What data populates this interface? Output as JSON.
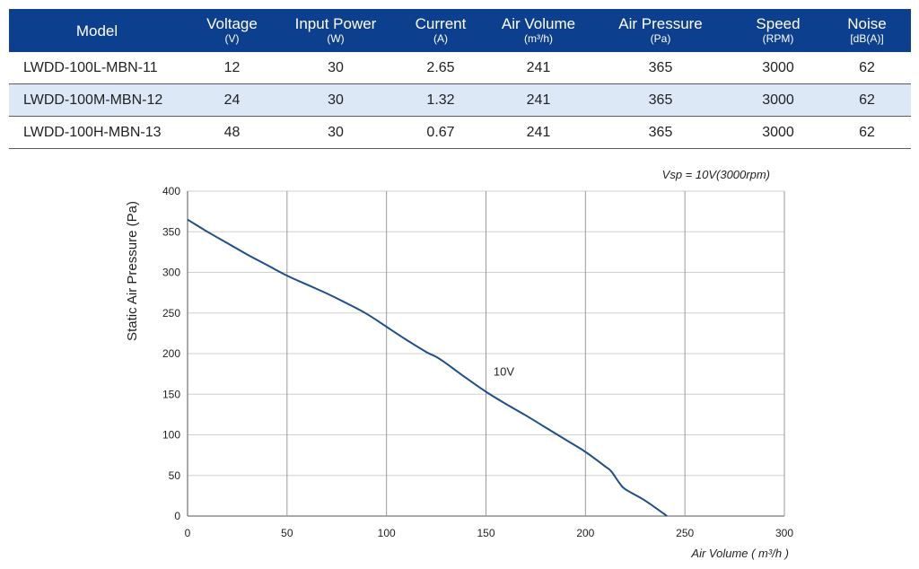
{
  "table": {
    "headers": [
      {
        "name": "Model",
        "unit": ""
      },
      {
        "name": "Voltage",
        "unit": "(V)"
      },
      {
        "name": "Input Power",
        "unit": "(W)"
      },
      {
        "name": "Current",
        "unit": "(A)"
      },
      {
        "name": "Air Volume",
        "unit": "(m³/h)"
      },
      {
        "name": "Air Pressure",
        "unit": "(Pa)"
      },
      {
        "name": "Speed",
        "unit": "(RPM)"
      },
      {
        "name": "Noise",
        "unit": "[dB(A)]"
      }
    ],
    "rows": [
      [
        "LWDD-100L-MBN-11",
        "12",
        "30",
        "2.65",
        "241",
        "365",
        "3000",
        "62"
      ],
      [
        "LWDD-100M-MBN-12",
        "24",
        "30",
        "1.32",
        "241",
        "365",
        "3000",
        "62"
      ],
      [
        "LWDD-100H-MBN-13",
        "48",
        "30",
        "0.67",
        "241",
        "365",
        "3000",
        "62"
      ]
    ],
    "colors": {
      "header_bg": "#0d3f8f",
      "alt_row_bg": "#dde8f6"
    }
  },
  "chart_data": {
    "type": "line",
    "annotation": "Vsp = 10V(3000rpm)",
    "xlabel": "Air Volume ( m³/h )",
    "ylabel": "Static Air Pressure  (Pa)",
    "xlim": [
      0,
      300
    ],
    "ylim": [
      0,
      400
    ],
    "xticks": [
      "0",
      "50",
      "100",
      "150",
      "200",
      "250",
      "300"
    ],
    "yticks": [
      "0",
      "50",
      "100",
      "150",
      "200",
      "250",
      "300",
      "350",
      "400"
    ],
    "grid": true,
    "series": [
      {
        "name": "10V",
        "color": "#1f4e8c",
        "x": [
          0,
          10,
          20,
          30,
          40,
          50,
          60,
          70,
          80,
          90,
          100,
          110,
          120,
          125,
          130,
          140,
          150,
          160,
          170,
          180,
          190,
          200,
          210,
          213,
          217,
          220,
          230,
          241
        ],
        "y": [
          365,
          350,
          336,
          322,
          309,
          296,
          285,
          274,
          262,
          249,
          233,
          217,
          202,
          196,
          188,
          170,
          153,
          138,
          124,
          109,
          94,
          79,
          61,
          55,
          41,
          33,
          19,
          0
        ]
      }
    ]
  }
}
